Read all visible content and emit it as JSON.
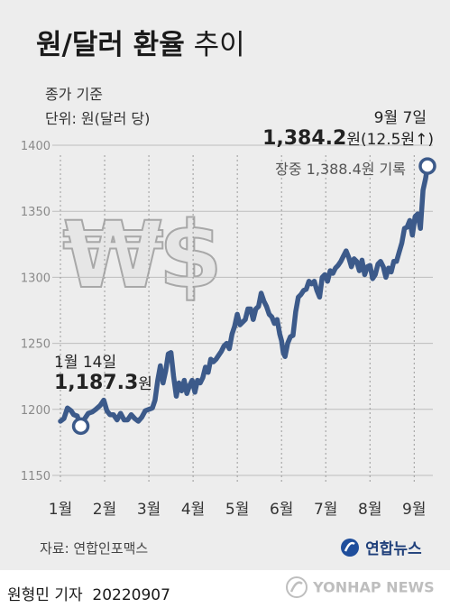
{
  "title": {
    "bold": "원/달러 환율",
    "normal": "추이"
  },
  "subtitle": {
    "basis": "종가 기준",
    "unit": "단위: 원(달러 당)"
  },
  "annotations": {
    "start": {
      "date": "1월 14일",
      "value": "1,187.3",
      "unit": "원"
    },
    "end": {
      "date": "9월 7일",
      "value": "1,384.2",
      "unit": "원",
      "change": "(12.5원↑)",
      "intraday": "장중 1,388.4원 기록"
    }
  },
  "watermark": "₩$",
  "source": "자료: 연합인포맥스",
  "brand": {
    "name": "연합뉴스",
    "sub": "YONHAP NEWS"
  },
  "byline": "원형민 기자  20220907",
  "colors": {
    "line": "#3c5a8a",
    "background": "#ededed",
    "grid": "#9a9a9a",
    "text": "#222222"
  },
  "chart_data": {
    "type": "line",
    "ylim": [
      1150,
      1400
    ],
    "yticks": [
      1150,
      1200,
      1250,
      1300,
      1350,
      1400
    ],
    "xlim": [
      1,
      9.3
    ],
    "xticks": [
      {
        "label": "1월",
        "x": 1
      },
      {
        "label": "2월",
        "x": 2
      },
      {
        "label": "3월",
        "x": 3
      },
      {
        "label": "4월",
        "x": 4
      },
      {
        "label": "5월",
        "x": 5
      },
      {
        "label": "6월",
        "x": 6
      },
      {
        "label": "7월",
        "x": 7
      },
      {
        "label": "8월",
        "x": 8
      },
      {
        "label": "9월",
        "x": 9
      }
    ],
    "grid": "vertical-dotted",
    "series": [
      {
        "points": [
          [
            1.0,
            1191
          ],
          [
            1.08,
            1193
          ],
          [
            1.16,
            1201
          ],
          [
            1.24,
            1199
          ],
          [
            1.3,
            1196
          ],
          [
            1.38,
            1195
          ],
          [
            1.46,
            1187.3
          ],
          [
            1.55,
            1193
          ],
          [
            1.63,
            1197
          ],
          [
            1.72,
            1198
          ],
          [
            1.8,
            1200
          ],
          [
            1.9,
            1203
          ],
          [
            1.98,
            1207
          ],
          [
            2.05,
            1199
          ],
          [
            2.12,
            1196
          ],
          [
            2.2,
            1196
          ],
          [
            2.28,
            1192
          ],
          [
            2.36,
            1197
          ],
          [
            2.44,
            1192
          ],
          [
            2.52,
            1192
          ],
          [
            2.6,
            1196
          ],
          [
            2.68,
            1193
          ],
          [
            2.76,
            1191
          ],
          [
            2.84,
            1194
          ],
          [
            2.92,
            1199
          ],
          [
            3.0,
            1200
          ],
          [
            3.08,
            1201
          ],
          [
            3.14,
            1207
          ],
          [
            3.2,
            1222
          ],
          [
            3.26,
            1233
          ],
          [
            3.32,
            1220
          ],
          [
            3.38,
            1229
          ],
          [
            3.44,
            1242
          ],
          [
            3.5,
            1243
          ],
          [
            3.56,
            1225
          ],
          [
            3.62,
            1210
          ],
          [
            3.68,
            1220
          ],
          [
            3.74,
            1214
          ],
          [
            3.8,
            1222
          ],
          [
            3.86,
            1212
          ],
          [
            3.92,
            1218
          ],
          [
            3.98,
            1222
          ],
          [
            4.04,
            1213
          ],
          [
            4.1,
            1222
          ],
          [
            4.16,
            1220
          ],
          [
            4.22,
            1224
          ],
          [
            4.28,
            1232
          ],
          [
            4.34,
            1228
          ],
          [
            4.4,
            1238
          ],
          [
            4.46,
            1236
          ],
          [
            4.52,
            1238
          ],
          [
            4.58,
            1241
          ],
          [
            4.64,
            1244
          ],
          [
            4.7,
            1248
          ],
          [
            4.76,
            1250
          ],
          [
            4.82,
            1246
          ],
          [
            4.88,
            1257
          ],
          [
            4.94,
            1263
          ],
          [
            5.0,
            1272
          ],
          [
            5.06,
            1264
          ],
          [
            5.12,
            1266
          ],
          [
            5.18,
            1268
          ],
          [
            5.24,
            1276
          ],
          [
            5.3,
            1276
          ],
          [
            5.36,
            1268
          ],
          [
            5.42,
            1276
          ],
          [
            5.48,
            1278
          ],
          [
            5.54,
            1288
          ],
          [
            5.6,
            1282
          ],
          [
            5.66,
            1278
          ],
          [
            5.72,
            1272
          ],
          [
            5.78,
            1270
          ],
          [
            5.84,
            1265
          ],
          [
            5.9,
            1268
          ],
          [
            5.96,
            1257
          ],
          [
            6.0,
            1252
          ],
          [
            6.04,
            1243
          ],
          [
            6.08,
            1240
          ],
          [
            6.14,
            1250
          ],
          [
            6.2,
            1255
          ],
          [
            6.26,
            1256
          ],
          [
            6.32,
            1274
          ],
          [
            6.38,
            1285
          ],
          [
            6.44,
            1287
          ],
          [
            6.5,
            1290
          ],
          [
            6.56,
            1291
          ],
          [
            6.62,
            1297
          ],
          [
            6.68,
            1295
          ],
          [
            6.74,
            1297
          ],
          [
            6.8,
            1290
          ],
          [
            6.86,
            1285
          ],
          [
            6.92,
            1300
          ],
          [
            6.98,
            1302
          ],
          [
            7.04,
            1297
          ],
          [
            7.1,
            1305
          ],
          [
            7.16,
            1303
          ],
          [
            7.22,
            1307
          ],
          [
            7.28,
            1309
          ],
          [
            7.34,
            1312
          ],
          [
            7.4,
            1316
          ],
          [
            7.46,
            1320
          ],
          [
            7.52,
            1315
          ],
          [
            7.58,
            1308
          ],
          [
            7.64,
            1314
          ],
          [
            7.7,
            1312
          ],
          [
            7.76,
            1305
          ],
          [
            7.82,
            1313
          ],
          [
            7.88,
            1302
          ],
          [
            7.94,
            1308
          ],
          [
            8.0,
            1309
          ],
          [
            8.06,
            1299
          ],
          [
            8.12,
            1302
          ],
          [
            8.18,
            1310
          ],
          [
            8.24,
            1312
          ],
          [
            8.3,
            1308
          ],
          [
            8.36,
            1300
          ],
          [
            8.42,
            1307
          ],
          [
            8.48,
            1304
          ],
          [
            8.54,
            1312
          ],
          [
            8.6,
            1312
          ],
          [
            8.66,
            1319
          ],
          [
            8.72,
            1326
          ],
          [
            8.78,
            1337
          ],
          [
            8.84,
            1338
          ],
          [
            8.9,
            1343
          ],
          [
            8.96,
            1332
          ],
          [
            9.02,
            1346
          ],
          [
            9.08,
            1348
          ],
          [
            9.14,
            1337
          ],
          [
            9.2,
            1366
          ],
          [
            9.26,
            1375
          ],
          [
            9.3,
            1384.2
          ]
        ],
        "markers": [
          [
            1.46,
            1187.3
          ],
          [
            9.3,
            1384.2
          ]
        ]
      }
    ]
  }
}
